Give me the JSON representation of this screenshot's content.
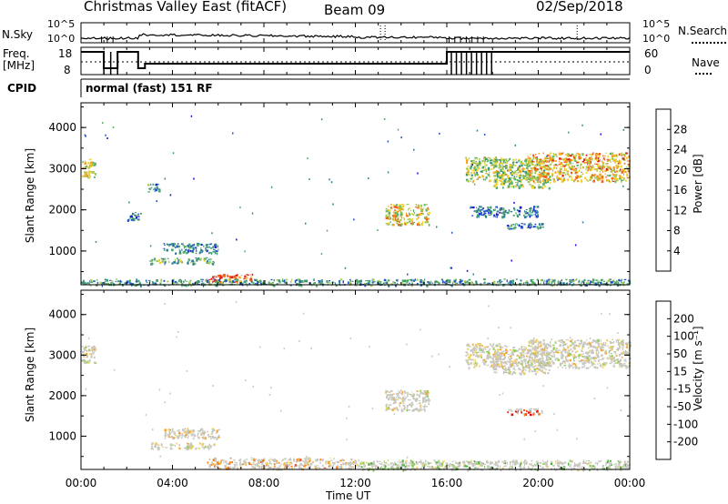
{
  "header": {
    "title": "Christmas Valley East (fitACF)",
    "beam": "Beam 09",
    "date": "02/Sep/2018"
  },
  "top_panels": {
    "nsky_label": "N.Sky",
    "nsky_ticks": [
      "10^5",
      "10^0"
    ],
    "nsearch_label": "N.Search",
    "nsearch_ticks": [
      "10^5",
      "10^0"
    ],
    "freq_label_1": "Freq.",
    "freq_label_2": "[MHz]",
    "freq_ticks": [
      "18",
      "8"
    ],
    "nave_label": "Nave",
    "nave_ticks": [
      "60",
      "0"
    ],
    "cpid_label": "CPID",
    "cpid_value": "normal (fast) 151 RF"
  },
  "colors": {
    "power_scale": [
      "#1010e0",
      "#2050c8",
      "#2e7f92",
      "#3c9a6e",
      "#58b068",
      "#a8c850",
      "#f0d020",
      "#f4a020",
      "#f06018",
      "#e02010"
    ],
    "velocity_scale": [
      "#e01010",
      "#f04818",
      "#f88020",
      "#f4a830",
      "#f0d060",
      "#c8c8c0",
      "#90d050",
      "#50b040",
      "#208060",
      "#2040b8"
    ]
  },
  "chart_data": [
    {
      "type": "heatmap",
      "name": "power",
      "ylabel": "Slant Range [km]",
      "xlabel": "",
      "ylim": [
        180,
        4600
      ],
      "xlim": [
        0,
        24
      ],
      "y_ticks": [
        "4000",
        "3000",
        "2000",
        "1000"
      ],
      "y_tick_values": [
        4000,
        3000,
        2000,
        1000
      ],
      "colorbar_label": "Power [dB]",
      "colorbar_ticks": [
        "28",
        "24",
        "20",
        "16",
        "12",
        "8",
        "4"
      ],
      "colorbar_range": [
        0,
        32
      ],
      "echo_regions": [
        {
          "t0": 0.0,
          "t1": 0.6,
          "r0": 2800,
          "r1": 3250,
          "level": 0.6
        },
        {
          "t0": 2.9,
          "t1": 3.4,
          "r0": 2450,
          "r1": 2650,
          "level": 0.3
        },
        {
          "t0": 2.0,
          "t1": 2.6,
          "r0": 1750,
          "r1": 1950,
          "level": 0.3
        },
        {
          "t0": 3.0,
          "t1": 5.8,
          "r0": 700,
          "r1": 850,
          "level": 0.4
        },
        {
          "t0": 3.6,
          "t1": 6.0,
          "r0": 950,
          "r1": 1200,
          "level": 0.25
        },
        {
          "t0": 5.5,
          "t1": 7.5,
          "r0": 250,
          "r1": 450,
          "level": 0.9
        },
        {
          "t0": 0.0,
          "t1": 24.0,
          "r0": 180,
          "r1": 330,
          "level": 0.35
        },
        {
          "t0": 13.3,
          "t1": 15.2,
          "r0": 1650,
          "r1": 2150,
          "level": 0.65
        },
        {
          "t0": 16.8,
          "t1": 18.4,
          "r0": 2700,
          "r1": 3300,
          "level": 0.55
        },
        {
          "t0": 18.0,
          "t1": 20.5,
          "r0": 2550,
          "r1": 3250,
          "level": 0.5
        },
        {
          "t0": 19.5,
          "t1": 24.0,
          "r0": 2700,
          "r1": 3400,
          "level": 0.7
        },
        {
          "t0": 17.0,
          "t1": 20.0,
          "r0": 1850,
          "r1": 2100,
          "level": 0.25
        },
        {
          "t0": 18.6,
          "t1": 20.2,
          "r0": 1550,
          "r1": 1700,
          "level": 0.3
        }
      ]
    },
    {
      "type": "heatmap",
      "name": "velocity",
      "ylabel": "Slant Range [km]",
      "xlabel": "Time UT",
      "ylim": [
        180,
        4600
      ],
      "xlim": [
        0,
        24
      ],
      "x_ticks": [
        "00:00",
        "04:00",
        "08:00",
        "12:00",
        "16:00",
        "20:00",
        "00:00"
      ],
      "x_tick_values": [
        0,
        4,
        8,
        12,
        16,
        20,
        24
      ],
      "y_ticks": [
        "4000",
        "3000",
        "2000",
        "1000"
      ],
      "y_tick_values": [
        4000,
        3000,
        2000,
        1000
      ],
      "colorbar_label": "Velocity [m s⁻¹]",
      "colorbar_ticks": [
        "200",
        "100",
        "50",
        "15",
        "-15",
        "-50",
        "-100",
        "-200"
      ],
      "echo_regions": [
        {
          "t0": 0.0,
          "t1": 0.6,
          "r0": 2800,
          "r1": 3250,
          "level": 0.5
        },
        {
          "t0": 3.0,
          "t1": 5.8,
          "r0": 700,
          "r1": 850,
          "level": 0.5
        },
        {
          "t0": 3.6,
          "t1": 6.0,
          "r0": 950,
          "r1": 1200,
          "level": 0.45
        },
        {
          "t0": 5.5,
          "t1": 12.0,
          "r0": 200,
          "r1": 480,
          "level": 0.35
        },
        {
          "t0": 12.0,
          "t1": 24.0,
          "r0": 180,
          "r1": 420,
          "level": 0.62
        },
        {
          "t0": 13.3,
          "t1": 15.2,
          "r0": 1650,
          "r1": 2150,
          "level": 0.5
        },
        {
          "t0": 16.8,
          "t1": 18.4,
          "r0": 2700,
          "r1": 3300,
          "level": 0.5
        },
        {
          "t0": 18.0,
          "t1": 20.5,
          "r0": 2550,
          "r1": 3250,
          "level": 0.5
        },
        {
          "t0": 19.5,
          "t1": 24.0,
          "r0": 2700,
          "r1": 3400,
          "level": 0.5
        },
        {
          "t0": 18.6,
          "t1": 20.2,
          "r0": 1550,
          "r1": 1700,
          "level": 0.1
        }
      ]
    }
  ]
}
